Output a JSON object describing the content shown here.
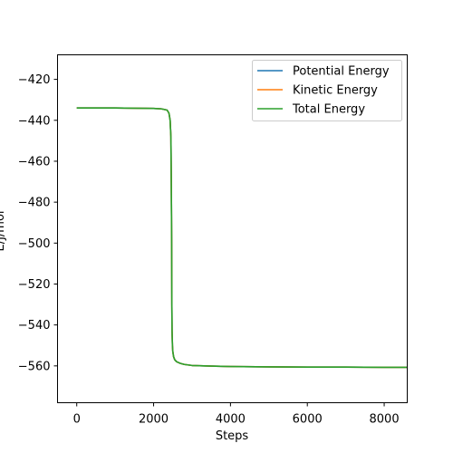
{
  "chart_data": {
    "type": "line",
    "title": "",
    "xlabel": "Steps",
    "ylabel": "E/J/mol",
    "xlim": [
      -500,
      8600
    ],
    "ylim": [
      -578,
      -408
    ],
    "xticks": [
      0,
      2000,
      4000,
      6000,
      8000
    ],
    "yticks": [
      -420,
      -440,
      -460,
      -480,
      -500,
      -520,
      -540,
      -560
    ],
    "xtick_labels": [
      "0",
      "2000",
      "4000",
      "6000",
      "8000"
    ],
    "ytick_labels": [
      "−420",
      "−440",
      "−460",
      "−480",
      "−500",
      "−520",
      "−540",
      "−560"
    ],
    "grid": false,
    "legend_position": "top-right",
    "series": [
      {
        "name": "Potential Energy",
        "color": "#1f77b4",
        "x": [
          0,
          500,
          1000,
          1500,
          2000,
          2200,
          2350,
          2400,
          2430,
          2450,
          2460,
          2470,
          2475,
          2480,
          2490,
          2500,
          2520,
          2550,
          2600,
          2700,
          2800,
          3000,
          3500,
          4000,
          5000,
          6000,
          7000,
          8000,
          8600
        ],
        "y": [
          -434,
          -434,
          -434,
          -434.1,
          -434.2,
          -434.4,
          -435,
          -436.5,
          -440,
          -448,
          -470,
          -500,
          -530,
          -543,
          -550,
          -553,
          -555.5,
          -557,
          -558,
          -558.8,
          -559.3,
          -559.8,
          -560.1,
          -560.3,
          -560.5,
          -560.6,
          -560.6,
          -560.7,
          -560.7
        ]
      },
      {
        "name": "Kinetic Energy",
        "color": "#ff7f0e",
        "x": [
          0,
          500,
          1000,
          1500,
          2000,
          2200,
          2350,
          2400,
          2430,
          2450,
          2460,
          2470,
          2475,
          2480,
          2490,
          2500,
          2520,
          2550,
          2600,
          2700,
          2800,
          3000,
          3500,
          4000,
          5000,
          6000,
          7000,
          8000,
          8600
        ],
        "y": [
          -434,
          -434,
          -434,
          -434.1,
          -434.2,
          -434.4,
          -435,
          -436.5,
          -440,
          -448,
          -470,
          -500,
          -530,
          -543,
          -550,
          -553,
          -555.5,
          -557,
          -558,
          -558.8,
          -559.3,
          -559.8,
          -560.1,
          -560.3,
          -560.5,
          -560.6,
          -560.6,
          -560.7,
          -560.7
        ]
      },
      {
        "name": "Total Energy",
        "color": "#2ca02c",
        "x": [
          0,
          500,
          1000,
          1500,
          2000,
          2200,
          2350,
          2400,
          2430,
          2450,
          2460,
          2470,
          2475,
          2480,
          2490,
          2500,
          2520,
          2550,
          2600,
          2700,
          2800,
          3000,
          3500,
          4000,
          5000,
          6000,
          7000,
          8000,
          8600
        ],
        "y": [
          -434,
          -434,
          -434,
          -434.1,
          -434.2,
          -434.4,
          -435,
          -436.5,
          -440,
          -448,
          -470,
          -500,
          -530,
          -543,
          -550,
          -553,
          -555.5,
          -557,
          -558,
          -558.8,
          -559.3,
          -559.8,
          -560.1,
          -560.3,
          -560.5,
          -560.6,
          -560.6,
          -560.7,
          -560.7
        ]
      }
    ]
  }
}
